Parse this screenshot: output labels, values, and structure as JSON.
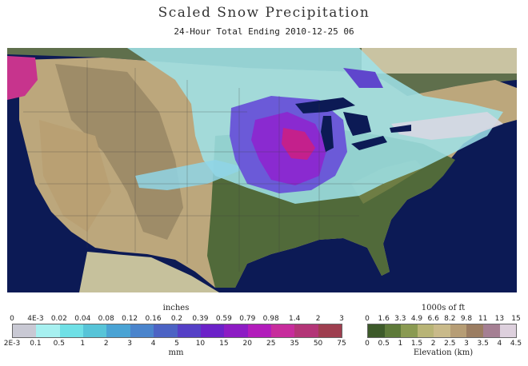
{
  "title": "Scaled Snow Precipitation",
  "subtitle": "24-Hour Total Ending 2010-12-25 06",
  "legend_snow": {
    "top_unit": "inches",
    "bottom_unit": "mm",
    "top_ticks": [
      "0",
      "4E-3",
      "0.02",
      "0.04",
      "0.08",
      "0.12",
      "0.16",
      "0.2",
      "0.39",
      "0.59",
      "0.79",
      "0.98",
      "1.4",
      "2",
      "3"
    ],
    "bottom_ticks": [
      "2E-3",
      "0.1",
      "0.5",
      "1",
      "2",
      "3",
      "4",
      "5",
      "10",
      "15",
      "20",
      "25",
      "35",
      "50",
      "75"
    ],
    "colors": [
      "#c9c9d4",
      "#a7f0f0",
      "#6fe0e6",
      "#57c4d8",
      "#4aa3d4",
      "#4a84cc",
      "#4c63c4",
      "#5540c6",
      "#6b22c8",
      "#8d1cc4",
      "#b21dbb",
      "#c72c9c",
      "#b33577",
      "#9e3e4f"
    ]
  },
  "legend_elev": {
    "top_unit": "1000s of ft",
    "bottom_unit": "Elevation (km)",
    "top_ticks": [
      "0",
      "1.6",
      "3.3",
      "4.9",
      "6.6",
      "8.2",
      "9.8",
      "11",
      "13",
      "15"
    ],
    "bottom_ticks": [
      "0",
      "0.5",
      "1",
      "1.5",
      "2",
      "2.5",
      "3",
      "3.5",
      "4",
      "4.5"
    ],
    "colors": [
      "#3d5a2a",
      "#5e7a3a",
      "#8a9a52",
      "#b8b476",
      "#c9ba8a",
      "#b69d75",
      "#9b7d62",
      "#a57f93",
      "#ddd0dd"
    ]
  }
}
